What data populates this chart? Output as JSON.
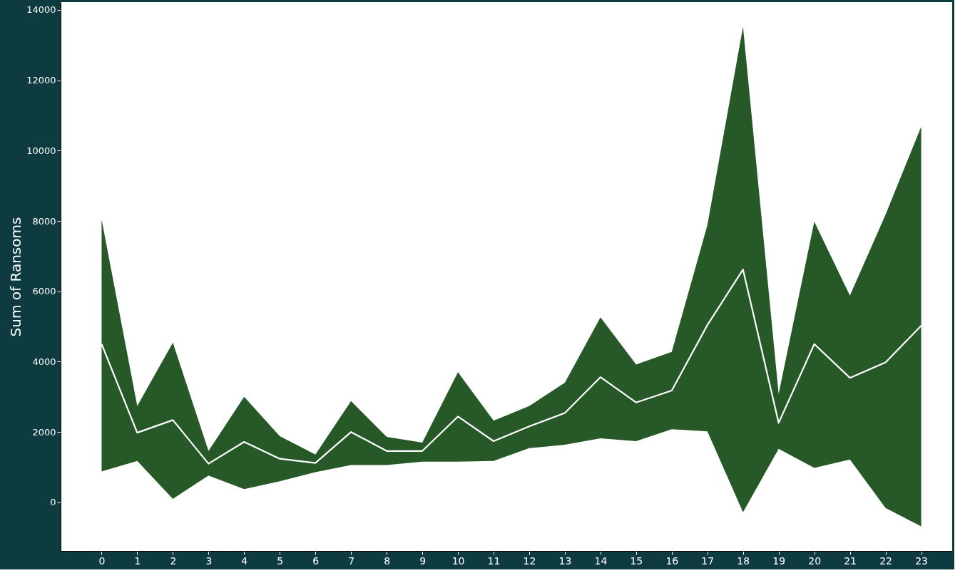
{
  "chart_data": {
    "type": "line",
    "ylabel": "Sum of Ransoms",
    "x": [
      0,
      1,
      2,
      3,
      4,
      5,
      6,
      7,
      8,
      9,
      10,
      11,
      12,
      13,
      14,
      15,
      16,
      17,
      18,
      19,
      20,
      21,
      22,
      23
    ],
    "series": [
      {
        "color": "#ffffff",
        "values": [
          4500,
          1980,
          2340,
          1100,
          1720,
          1240,
          1120,
          2000,
          1460,
          1460,
          2440,
          1740,
          2160,
          2540,
          3560,
          2840,
          3180,
          5040,
          6620,
          2260,
          4500,
          3540,
          3980,
          5020
        ],
        "lower": [
          880,
          1180,
          100,
          760,
          380,
          600,
          860,
          1060,
          1060,
          1160,
          1160,
          1180,
          1540,
          1640,
          1820,
          1740,
          2080,
          2020,
          -280,
          1520,
          980,
          1220,
          -160,
          -680
        ],
        "upper": [
          8040,
          2740,
          4540,
          1460,
          3000,
          1880,
          1360,
          2880,
          1860,
          1700,
          3700,
          2320,
          2740,
          3400,
          5260,
          3920,
          4280,
          7880,
          13520,
          3080,
          7980,
          5880,
          8180,
          10680
        ]
      }
    ],
    "xlim": [
      -1.15,
      23.87
    ],
    "xticks": [
      0,
      1,
      2,
      3,
      4,
      5,
      6,
      7,
      8,
      9,
      10,
      11,
      12,
      13,
      14,
      15,
      16,
      17,
      18,
      19,
      20,
      21,
      22,
      23
    ],
    "ylim": [
      -1380,
      14220
    ],
    "yticks": [
      0,
      2000,
      4000,
      6000,
      8000,
      10000,
      12000,
      14000
    ],
    "grid": false,
    "legend": false,
    "line_style": "solid",
    "marker": "none"
  }
}
